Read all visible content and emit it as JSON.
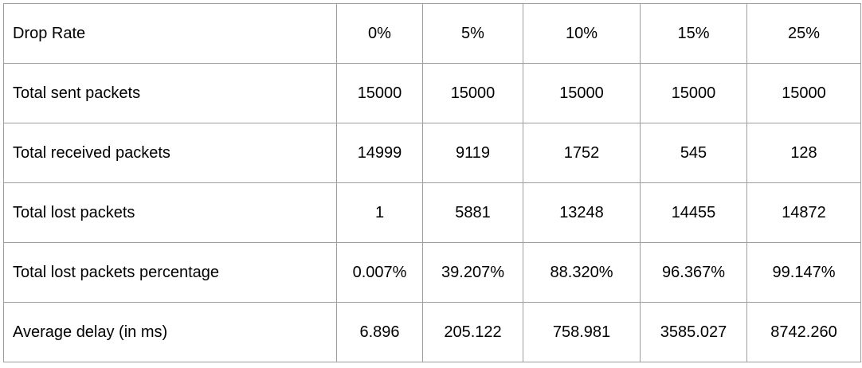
{
  "table": {
    "header": [
      "Drop Rate",
      "0%",
      "5%",
      "10%",
      "15%",
      "25%"
    ],
    "rows": [
      [
        "Total sent packets",
        "15000",
        "15000",
        "15000",
        "15000",
        "15000"
      ],
      [
        "Total received packets",
        "14999",
        "9119",
        "1752",
        "545",
        "128"
      ],
      [
        "Total lost packets",
        "1",
        "5881",
        "13248",
        "14455",
        "14872"
      ],
      [
        "Total lost packets percentage",
        "0.007%",
        "39.207%",
        "88.320%",
        "96.367%",
        "99.147%"
      ],
      [
        "Average delay (in ms)",
        "6.896",
        "205.122",
        "758.981",
        "3585.027",
        "8742.260"
      ]
    ]
  }
}
